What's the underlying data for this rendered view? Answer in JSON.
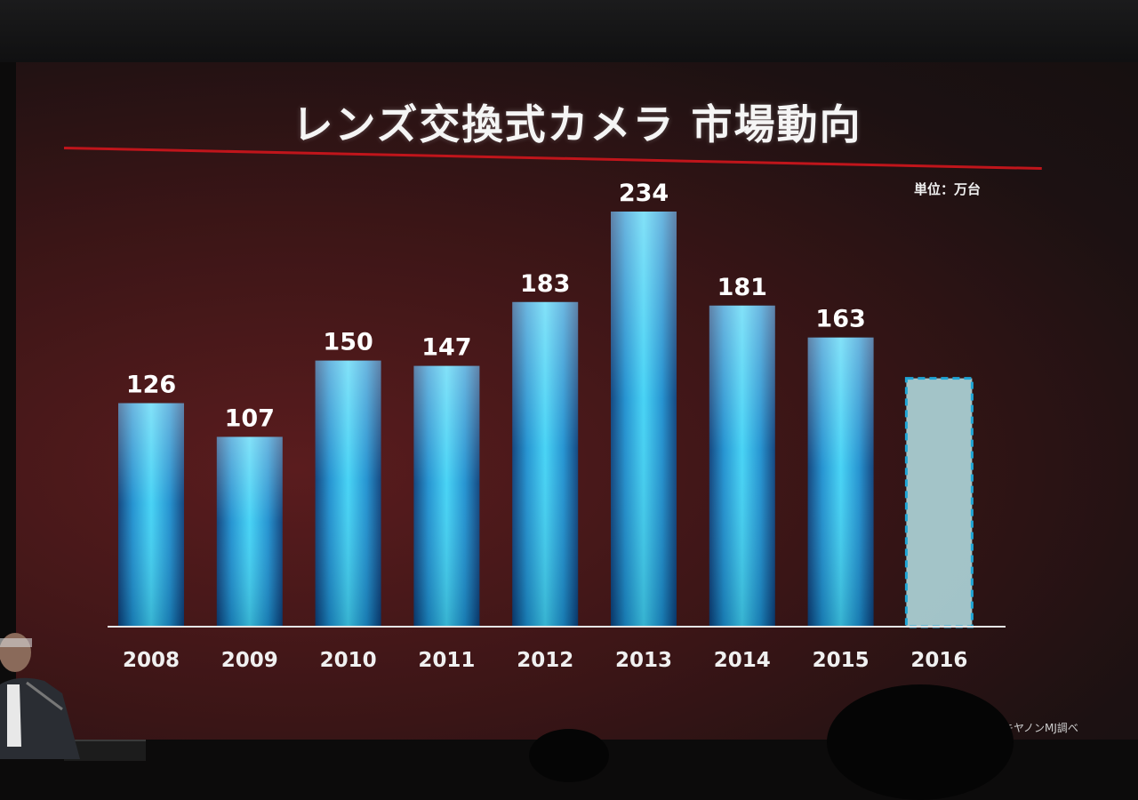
{
  "slide": {
    "title": "レンズ交換式カメラ 市場動向",
    "unit": "単位：万台",
    "source_note": "キヤノンMJ調べ"
  },
  "chart_data": {
    "type": "bar",
    "categories": [
      "2008",
      "2009",
      "2010",
      "2011",
      "2012",
      "2013",
      "2014",
      "2015",
      "2016"
    ],
    "values": [
      126,
      107,
      150,
      147,
      183,
      234,
      181,
      163,
      null
    ],
    "data_labels": [
      "126",
      "107",
      "150",
      "147",
      "183",
      "234",
      "181",
      "163",
      ""
    ],
    "forecast_category": "2016",
    "forecast_estimated_value": 140,
    "title": "レンズ交換式カメラ 市場動向",
    "xlabel": "",
    "ylabel": "",
    "ylim": [
      0,
      234
    ],
    "grid": false,
    "legend": "none",
    "colors": {
      "bar_top": "#8fe6ff",
      "bar_mid": "#1eb6e6",
      "bar_edge": "#0a3f7a",
      "forecast_fill": "#b7e3e8",
      "forecast_border": "#1fa6d6",
      "axis": "#e6e6e6",
      "title_rule": "#c0151b"
    }
  }
}
